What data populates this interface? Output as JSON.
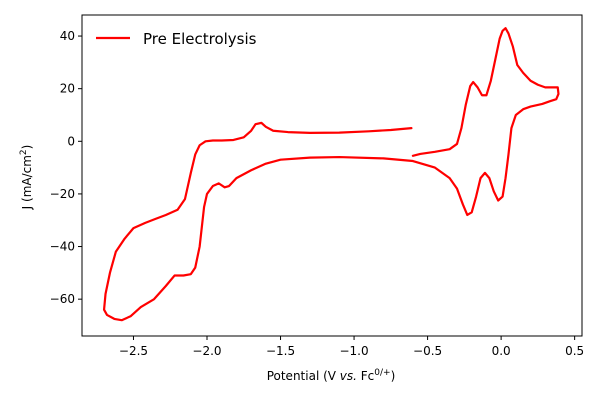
{
  "chart_data": {
    "type": "line",
    "title": "",
    "xlabel": {
      "prefix": "Potential (V ",
      "italic": "vs.",
      "mid": " Fc",
      "sup": "0/+",
      "suffix": ")"
    },
    "ylabel": {
      "prefix": "J (mA/cm",
      "sup": "2",
      "suffix": ")"
    },
    "xlim": [
      -2.85,
      0.55
    ],
    "ylim": [
      -74,
      48
    ],
    "grid": false,
    "legend_position": "top-left",
    "x_ticks": [
      {
        "value": -2.5,
        "label": "−2.5"
      },
      {
        "value": -2.0,
        "label": "−2.0"
      },
      {
        "value": -1.5,
        "label": "−1.5"
      },
      {
        "value": -1.0,
        "label": "−1.0"
      },
      {
        "value": -0.5,
        "label": "−0.5"
      },
      {
        "value": 0.0,
        "label": "0.0"
      },
      {
        "value": 0.5,
        "label": "0.5"
      }
    ],
    "y_ticks": [
      {
        "value": 40,
        "label": "40"
      },
      {
        "value": 20,
        "label": "20"
      },
      {
        "value": 0,
        "label": "0"
      },
      {
        "value": -20,
        "label": "−20"
      },
      {
        "value": -40,
        "label": "−40"
      },
      {
        "value": -60,
        "label": "−60"
      }
    ],
    "series": [
      {
        "name": "Pre Electrolysis",
        "color": "#ff0000",
        "points": [
          [
            -0.6,
            -5.5
          ],
          [
            -0.55,
            -4.8
          ],
          [
            -0.45,
            -4.0
          ],
          [
            -0.35,
            -3.0
          ],
          [
            -0.3,
            -1.0
          ],
          [
            -0.27,
            5.0
          ],
          [
            -0.24,
            14.0
          ],
          [
            -0.21,
            21.0
          ],
          [
            -0.19,
            22.5
          ],
          [
            -0.16,
            20.5
          ],
          [
            -0.13,
            17.5
          ],
          [
            -0.1,
            17.5
          ],
          [
            -0.07,
            23.0
          ],
          [
            -0.04,
            31.0
          ],
          [
            -0.01,
            39.0
          ],
          [
            0.01,
            42.0
          ],
          [
            0.03,
            43.0
          ],
          [
            0.05,
            41.0
          ],
          [
            0.08,
            36.0
          ],
          [
            0.11,
            29.0
          ],
          [
            0.15,
            26.0
          ],
          [
            0.2,
            23.0
          ],
          [
            0.25,
            21.5
          ],
          [
            0.3,
            20.5
          ],
          [
            0.35,
            20.5
          ],
          [
            0.385,
            20.5
          ],
          [
            0.39,
            18.0
          ],
          [
            0.375,
            16.0
          ],
          [
            0.33,
            15.2
          ],
          [
            0.28,
            14.2
          ],
          [
            0.2,
            13.2
          ],
          [
            0.15,
            12.2
          ],
          [
            0.1,
            10.0
          ],
          [
            0.07,
            5.0
          ],
          [
            0.05,
            -5.0
          ],
          [
            0.03,
            -14.0
          ],
          [
            0.01,
            -21.0
          ],
          [
            -0.02,
            -22.5
          ],
          [
            -0.05,
            -19.0
          ],
          [
            -0.08,
            -14.0
          ],
          [
            -0.11,
            -12.0
          ],
          [
            -0.14,
            -14.0
          ],
          [
            -0.17,
            -21.0
          ],
          [
            -0.2,
            -27.0
          ],
          [
            -0.23,
            -28.0
          ],
          [
            -0.26,
            -24.0
          ],
          [
            -0.3,
            -18.0
          ],
          [
            -0.35,
            -14.0
          ],
          [
            -0.45,
            -10.0
          ],
          [
            -0.6,
            -7.5
          ],
          [
            -0.8,
            -6.5
          ],
          [
            -1.1,
            -6.0
          ],
          [
            -1.3,
            -6.2
          ],
          [
            -1.5,
            -7.0
          ],
          [
            -1.6,
            -8.5
          ],
          [
            -1.7,
            -11.0
          ],
          [
            -1.8,
            -14.0
          ],
          [
            -1.85,
            -17.0
          ],
          [
            -1.88,
            -17.5
          ],
          [
            -1.92,
            -16.0
          ],
          [
            -1.96,
            -17.0
          ],
          [
            -2.0,
            -20.0
          ],
          [
            -2.02,
            -25.0
          ],
          [
            -2.05,
            -40.0
          ],
          [
            -2.08,
            -48.0
          ],
          [
            -2.11,
            -50.5
          ],
          [
            -2.16,
            -51.0
          ],
          [
            -2.22,
            -51.0
          ],
          [
            -2.28,
            -55.0
          ],
          [
            -2.36,
            -60.0
          ],
          [
            -2.45,
            -63.0
          ],
          [
            -2.52,
            -66.5
          ],
          [
            -2.58,
            -68.0
          ],
          [
            -2.63,
            -67.5
          ],
          [
            -2.68,
            -66.0
          ],
          [
            -2.7,
            -64.0
          ],
          [
            -2.69,
            -58.0
          ],
          [
            -2.66,
            -50.0
          ],
          [
            -2.62,
            -42.0
          ],
          [
            -2.56,
            -37.0
          ],
          [
            -2.5,
            -33.0
          ],
          [
            -2.42,
            -31.0
          ],
          [
            -2.35,
            -29.5
          ],
          [
            -2.28,
            -28.0
          ],
          [
            -2.2,
            -26.0
          ],
          [
            -2.15,
            -22.0
          ],
          [
            -2.11,
            -12.0
          ],
          [
            -2.08,
            -5.0
          ],
          [
            -2.05,
            -1.5
          ],
          [
            -2.01,
            0.0
          ],
          [
            -1.96,
            0.3
          ],
          [
            -1.9,
            0.3
          ],
          [
            -1.82,
            0.5
          ],
          [
            -1.75,
            1.5
          ],
          [
            -1.7,
            4.0
          ],
          [
            -1.67,
            6.5
          ],
          [
            -1.63,
            7.0
          ],
          [
            -1.6,
            5.5
          ],
          [
            -1.55,
            4.0
          ],
          [
            -1.45,
            3.5
          ],
          [
            -1.3,
            3.2
          ],
          [
            -1.1,
            3.3
          ],
          [
            -0.9,
            3.8
          ],
          [
            -0.75,
            4.3
          ],
          [
            -0.61,
            5.0
          ]
        ]
      }
    ]
  }
}
